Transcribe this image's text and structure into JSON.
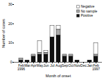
{
  "chart_data": {
    "type": "bar",
    "stacked": true,
    "categories": [
      "Feb\n1996",
      "Mar",
      "Apr",
      "May",
      "Jun",
      "Jul",
      "Aug",
      "Sep",
      "Oct",
      "Nov",
      "Dec",
      "Jan",
      "Feb\n1997"
    ],
    "series": [
      {
        "name": "Positive",
        "color": "#111111",
        "values": [
          1,
          1,
          3,
          4,
          4,
          13,
          14,
          3,
          3,
          1,
          0,
          1,
          3
        ]
      },
      {
        "name": "No sample",
        "color": "#aaaaaa",
        "values": [
          1,
          0,
          1,
          1,
          1,
          0,
          3,
          1,
          1,
          0,
          0,
          0,
          1
        ]
      },
      {
        "name": "Negative",
        "color": "#ffffff",
        "values": [
          0,
          0,
          0,
          6,
          1,
          6,
          2,
          0,
          0,
          0,
          0,
          0,
          6
        ]
      }
    ],
    "xlabel": "Month of onset",
    "ylabel": "Number of cases",
    "ylim": [
      0,
      30
    ],
    "yticks": [
      0,
      10,
      20,
      30
    ],
    "legend": "upper right",
    "grid": false
  }
}
